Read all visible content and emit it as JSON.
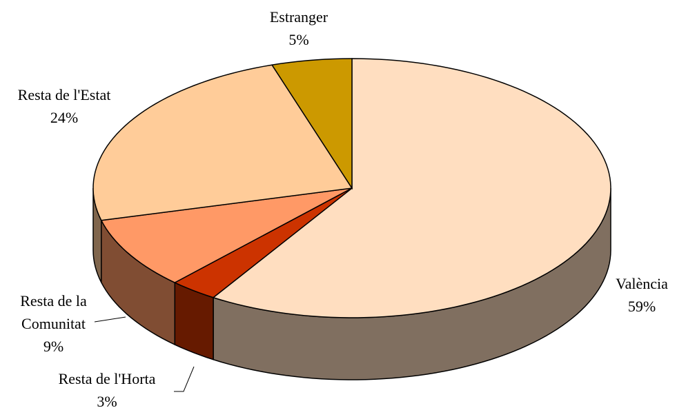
{
  "chart_data": {
    "type": "pie3d",
    "categories": [
      "València",
      "Resta de l'Horta",
      "Resta de la Comunitat",
      "Resta de l'Estat",
      "Estranger"
    ],
    "values": [
      59,
      3,
      9,
      24,
      5
    ],
    "value_labels": [
      "59%",
      "3%",
      "9%",
      "24%",
      "5%"
    ],
    "colors": [
      "#FFDEC0",
      "#CC3300",
      "#FF9966",
      "#FFCC99",
      "#CC9900"
    ]
  }
}
